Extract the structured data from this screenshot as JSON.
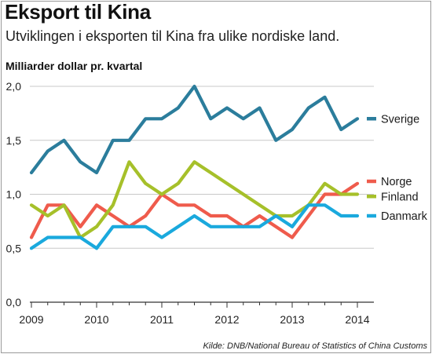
{
  "header": {
    "title": "Eksport til Kina",
    "subtitle": "Utviklingen i eksporten til Kina fra ulike nordiske land.",
    "unit_label": "Milliarder dollar pr. kvartal"
  },
  "footer": {
    "source": "Kilde: DNB/National Bureau of Statistics of China Customs"
  },
  "chart_data": {
    "type": "line",
    "title": "Eksport til Kina",
    "subtitle": "Utviklingen i eksporten til Kina fra ulike nordiske land.",
    "ylabel": "Milliarder dollar pr. kvartal",
    "xlabel": "",
    "x": [
      "2009 K1",
      "2009 K2",
      "2009 K3",
      "2009 K4",
      "2010 K1",
      "2010 K2",
      "2010 K3",
      "2010 K4",
      "2011 K1",
      "2011 K2",
      "2011 K3",
      "2011 K4",
      "2012 K1",
      "2012 K2",
      "2012 K3",
      "2012 K4",
      "2013 K1",
      "2013 K2",
      "2013 K3",
      "2013 K4",
      "2014 K1"
    ],
    "xticks": [
      "2009",
      "2010",
      "2011",
      "2012",
      "2013",
      "2014"
    ],
    "yticks": [
      "0,0",
      "0,5",
      "1,0",
      "1,5",
      "2,0"
    ],
    "ylim": [
      0,
      2.0
    ],
    "grid": "horizontal",
    "legend": "right, at line ends",
    "series": [
      {
        "name": "Sverige",
        "color": "#2b7d9c",
        "values": [
          1.2,
          1.4,
          1.5,
          1.3,
          1.2,
          1.5,
          1.5,
          1.7,
          1.7,
          1.8,
          2.0,
          1.7,
          1.8,
          1.7,
          1.8,
          1.5,
          1.6,
          1.8,
          1.9,
          1.6,
          1.7
        ]
      },
      {
        "name": "Norge",
        "color": "#ef5b4c",
        "values": [
          0.6,
          0.9,
          0.9,
          0.7,
          0.9,
          0.8,
          0.7,
          0.8,
          1.0,
          0.9,
          0.9,
          0.8,
          0.8,
          0.7,
          0.8,
          0.7,
          0.6,
          0.8,
          1.0,
          1.0,
          1.1
        ]
      },
      {
        "name": "Finland",
        "color": "#a6c02a",
        "values": [
          0.9,
          0.8,
          0.9,
          0.6,
          0.7,
          0.9,
          1.3,
          1.1,
          1.0,
          1.1,
          1.3,
          1.2,
          1.1,
          1.0,
          0.9,
          0.8,
          0.8,
          0.9,
          1.1,
          1.0,
          1.0
        ]
      },
      {
        "name": "Danmark",
        "color": "#1aa9dd",
        "values": [
          0.5,
          0.6,
          0.6,
          0.6,
          0.5,
          0.7,
          0.7,
          0.7,
          0.6,
          0.7,
          0.8,
          0.7,
          0.7,
          0.7,
          0.7,
          0.8,
          0.7,
          0.9,
          0.9,
          0.8,
          0.8
        ]
      }
    ]
  }
}
